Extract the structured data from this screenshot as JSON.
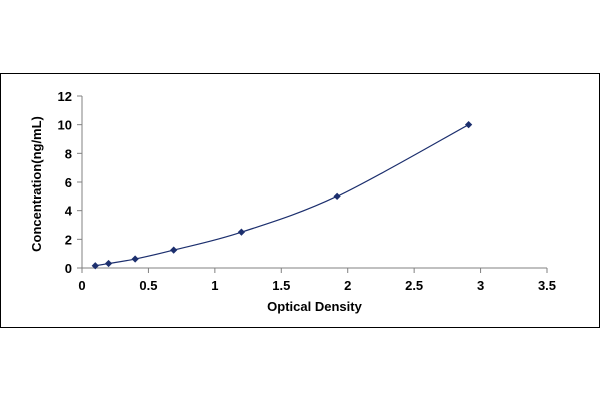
{
  "chart_data": {
    "type": "scatter",
    "title": "",
    "xlabel": "Optical Density",
    "ylabel": "Concentration(ng/mL)",
    "xlim": [
      0,
      3.5
    ],
    "ylim": [
      0,
      12
    ],
    "x_ticks": [
      "0",
      "0.5",
      "1",
      "1.5",
      "2",
      "2.5",
      "3",
      "3.5"
    ],
    "y_ticks": [
      "0",
      "2",
      "4",
      "6",
      "8",
      "10",
      "12"
    ],
    "grid": false,
    "legend": "none",
    "series": [
      {
        "x": [
          0.1,
          0.2,
          0.4,
          0.69,
          1.2,
          1.92,
          2.91
        ],
        "y": [
          0.156,
          0.312,
          0.625,
          1.25,
          2.5,
          5,
          10
        ],
        "marker": "diamond",
        "line": "smooth",
        "color": "#1c2f6e"
      }
    ]
  }
}
